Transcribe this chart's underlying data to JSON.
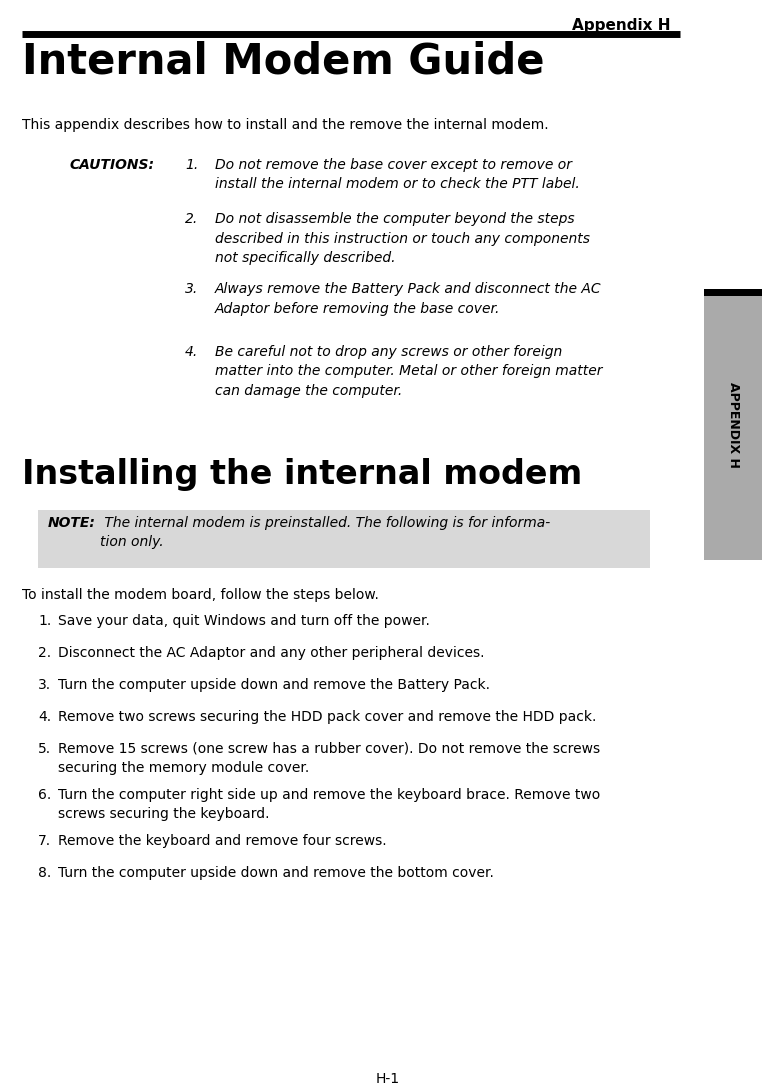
{
  "page_title": "Appendix H",
  "main_title": "Internal Modem Guide",
  "intro_text": "This appendix describes how to install and the remove the internal modem.",
  "cautions_label": "CAUTIONS:",
  "cautions": [
    "Do not remove the base cover except to remove or\ninstall the internal modem or to check the PTT label.",
    "Do not disassemble the computer beyond the steps\ndescribed in this instruction or touch any components\nnot specifically described.",
    "Always remove the Battery Pack and disconnect the AC\nAdaptor before removing the base cover.",
    "Be careful not to drop any screws or other foreign\nmatter into the computer. Metal or other foreign matter\ncan damage the computer."
  ],
  "section_title": "Installing the internal modem",
  "note_label": "NOTE:",
  "note_text": " The internal modem is preinstalled. The following is for informa-\ntion only.",
  "install_intro": "To install the modem board, follow the steps below.",
  "steps": [
    "Save your data, quit Windows and turn off the power.",
    "Disconnect the AC Adaptor and any other peripheral devices.",
    "Turn the computer upside down and remove the Battery Pack.",
    "Remove two screws securing the HDD pack cover and remove the HDD pack.",
    "Remove 15 screws (one screw has a rubber cover). Do not remove the screws\nsecuring the memory module cover.",
    "Turn the computer right side up and remove the keyboard brace. Remove two\nscrews securing the keyboard.",
    "Remove the keyboard and remove four screws.",
    "Turn the computer upside down and remove the bottom cover."
  ],
  "footer_text": "H-1",
  "sidebar_text": "APPENDIX H",
  "sidebar_bg": "#aaaaaa",
  "sidebar_text_color": "#000000",
  "bg_color": "#ffffff",
  "rule_color": "#000000",
  "note_box_bg": "#d8d8d8"
}
